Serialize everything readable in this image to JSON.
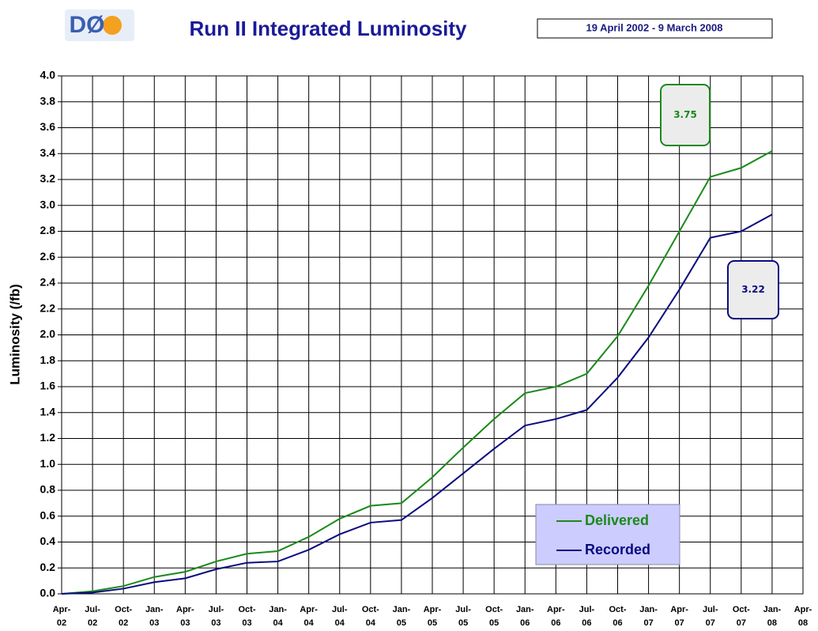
{
  "logo": "DØ",
  "chart_data": {
    "type": "line",
    "title": "Run II Integrated Luminosity",
    "subtitle": "19 April 2002 - 9 March 2008",
    "y_label": "Luminosity (/fb)",
    "categories": [
      "Apr-02",
      "Jul-02",
      "Oct-02",
      "Jan-03",
      "Apr-03",
      "Jul-03",
      "Oct-03",
      "Jan-04",
      "Apr-04",
      "Jul-04",
      "Oct-04",
      "Jan-05",
      "Apr-05",
      "Jul-05",
      "Oct-05",
      "Jan-06",
      "Apr-06",
      "Jul-06",
      "Oct-06",
      "Jan-07",
      "Apr-07",
      "Jul-07",
      "Oct-07",
      "Jan-08",
      "Apr-08"
    ],
    "series": [
      {
        "name": "Delivered",
        "color": "#1a8a1a",
        "values": [
          0.0,
          0.02,
          0.06,
          0.13,
          0.17,
          0.25,
          0.31,
          0.33,
          0.44,
          0.58,
          0.68,
          0.7,
          0.9,
          1.13,
          1.35,
          1.55,
          1.6,
          1.7,
          1.99,
          2.38,
          2.8,
          3.22,
          3.29,
          3.42,
          null
        ]
      },
      {
        "name": "Recorded",
        "color": "#0a0a80",
        "values": [
          0.0,
          0.01,
          0.04,
          0.09,
          0.12,
          0.19,
          0.24,
          0.25,
          0.34,
          0.46,
          0.55,
          0.57,
          0.74,
          0.93,
          1.12,
          1.3,
          1.35,
          1.42,
          1.67,
          1.98,
          2.35,
          2.75,
          2.8,
          2.93,
          null
        ]
      }
    ],
    "annotations": [
      {
        "text": "3.75",
        "color": "#1a8a1a"
      },
      {
        "text": "3.22",
        "color": "#0a0a80"
      }
    ],
    "ylim": [
      0,
      4
    ],
    "yticks": [
      {
        "value": 0,
        "label": "0.0"
      },
      0.2,
      0.4,
      0.6,
      0.8,
      {
        "value": 1,
        "label": "1.0"
      },
      1.2,
      1.4,
      1.6,
      1.8,
      {
        "value": 2,
        "label": "2.0"
      },
      2.2,
      2.4,
      2.6,
      2.8,
      {
        "value": 3,
        "label": "3.0"
      },
      3.2,
      3.4,
      3.6,
      3.8,
      {
        "value": 4,
        "label": "4.0"
      }
    ],
    "grid": true
  }
}
